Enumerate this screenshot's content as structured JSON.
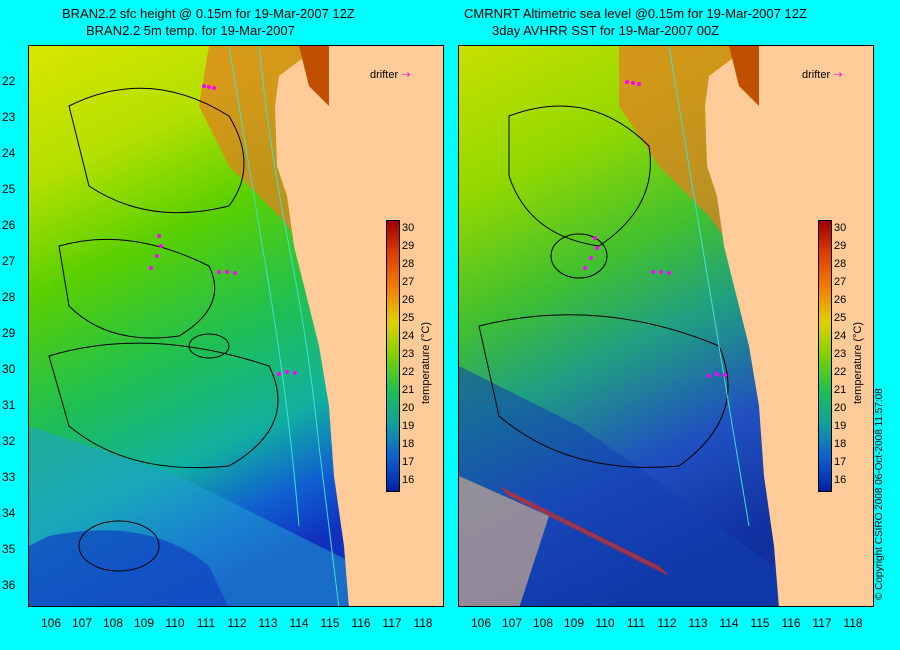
{
  "left": {
    "title1": "BRAN2.2 sfc height @ 0.15m for 19-Mar-2007 12Z",
    "title2": "BRAN2.2 5m temp. for 19-Mar-2007"
  },
  "right": {
    "title1": "CMRNRT Altimetric sea level  @0.15m  for 19-Mar-2007 12Z",
    "title2": "3day AVHRR SST for 19-Mar-2007 00Z"
  },
  "legend": {
    "drifter": "drifter"
  },
  "colorbar": {
    "unit": "temperature (°C)",
    "ticks": [
      "30",
      "29",
      "28",
      "27",
      "26",
      "25",
      "24",
      "23",
      "22",
      "21",
      "20",
      "19",
      "18",
      "17",
      "16"
    ]
  },
  "axes": {
    "lat": [
      "22",
      "23",
      "24",
      "25",
      "26",
      "27",
      "28",
      "29",
      "30",
      "31",
      "32",
      "33",
      "34",
      "35",
      "36"
    ],
    "lon": [
      "106",
      "107",
      "108",
      "109",
      "110",
      "111",
      "112",
      "113",
      "114",
      "115",
      "116",
      "117",
      "118"
    ]
  },
  "copyright": "© Copyright CSIRO 2008    06-Oct-2008 11:57:08",
  "colors": {
    "background": "#00ffff",
    "land": "#ffcc99",
    "drifter": "#ff00ff",
    "contour": "#000000",
    "bathymetry": "#40e0d0"
  }
}
